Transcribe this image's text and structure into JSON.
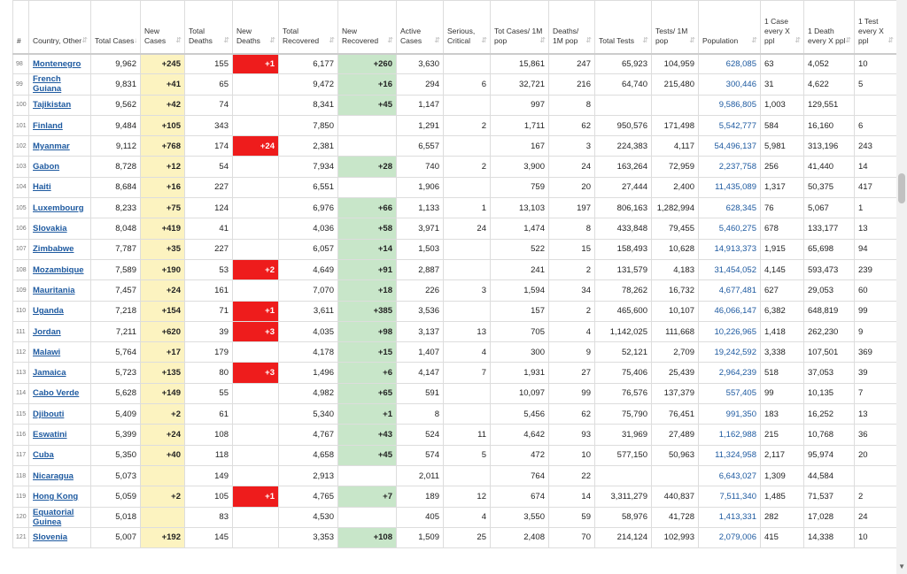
{
  "columns": [
    {
      "key": "rank",
      "label": "#"
    },
    {
      "key": "country",
      "label": "Country, Other"
    },
    {
      "key": "total_cases",
      "label": "Total Cases"
    },
    {
      "key": "new_cases",
      "label": "New Cases"
    },
    {
      "key": "total_deaths",
      "label": "Total Deaths"
    },
    {
      "key": "new_deaths",
      "label": "New Deaths"
    },
    {
      "key": "total_recovered",
      "label": "Total Recovered"
    },
    {
      "key": "new_recovered",
      "label": "New Recovered"
    },
    {
      "key": "active",
      "label": "Active Cases"
    },
    {
      "key": "critical",
      "label": "Serious, Critical"
    },
    {
      "key": "cases_1m",
      "label": "Tot Cases/ 1M pop"
    },
    {
      "key": "deaths_1m",
      "label": "Deaths/ 1M pop"
    },
    {
      "key": "total_tests",
      "label": "Total Tests"
    },
    {
      "key": "tests_1m",
      "label": "Tests/ 1M pop"
    },
    {
      "key": "population",
      "label": "Population"
    },
    {
      "key": "case_every",
      "label": "1 Case every X ppl"
    },
    {
      "key": "death_every",
      "label": "1 Death every X ppl"
    },
    {
      "key": "test_every",
      "label": "1 Test every X ppl"
    }
  ],
  "sort_icons": {
    "default": "⇵",
    "active": "↓"
  },
  "rows": [
    [
      "98",
      "Montenegro",
      "9,962",
      "+245",
      "155",
      "+1",
      "6,177",
      "+260",
      "3,630",
      "",
      "15,861",
      "247",
      "65,923",
      "104,959",
      "628,085",
      "63",
      "4,052",
      "10"
    ],
    [
      "99",
      "French Guiana",
      "9,831",
      "+41",
      "65",
      "",
      "9,472",
      "+16",
      "294",
      "6",
      "32,721",
      "216",
      "64,740",
      "215,480",
      "300,446",
      "31",
      "4,622",
      "5"
    ],
    [
      "100",
      "Tajikistan",
      "9,562",
      "+42",
      "74",
      "",
      "8,341",
      "+45",
      "1,147",
      "",
      "997",
      "8",
      "",
      "",
      "9,586,805",
      "1,003",
      "129,551",
      ""
    ],
    [
      "101",
      "Finland",
      "9,484",
      "+105",
      "343",
      "",
      "7,850",
      "",
      "1,291",
      "2",
      "1,711",
      "62",
      "950,576",
      "171,498",
      "5,542,777",
      "584",
      "16,160",
      "6"
    ],
    [
      "102",
      "Myanmar",
      "9,112",
      "+768",
      "174",
      "+24",
      "2,381",
      "",
      "6,557",
      "",
      "167",
      "3",
      "224,383",
      "4,117",
      "54,496,137",
      "5,981",
      "313,196",
      "243"
    ],
    [
      "103",
      "Gabon",
      "8,728",
      "+12",
      "54",
      "",
      "7,934",
      "+28",
      "740",
      "2",
      "3,900",
      "24",
      "163,264",
      "72,959",
      "2,237,758",
      "256",
      "41,440",
      "14"
    ],
    [
      "104",
      "Haiti",
      "8,684",
      "+16",
      "227",
      "",
      "6,551",
      "",
      "1,906",
      "",
      "759",
      "20",
      "27,444",
      "2,400",
      "11,435,089",
      "1,317",
      "50,375",
      "417"
    ],
    [
      "105",
      "Luxembourg",
      "8,233",
      "+75",
      "124",
      "",
      "6,976",
      "+66",
      "1,133",
      "1",
      "13,103",
      "197",
      "806,163",
      "1,282,994",
      "628,345",
      "76",
      "5,067",
      "1"
    ],
    [
      "106",
      "Slovakia",
      "8,048",
      "+419",
      "41",
      "",
      "4,036",
      "+58",
      "3,971",
      "24",
      "1,474",
      "8",
      "433,848",
      "79,455",
      "5,460,275",
      "678",
      "133,177",
      "13"
    ],
    [
      "107",
      "Zimbabwe",
      "7,787",
      "+35",
      "227",
      "",
      "6,057",
      "+14",
      "1,503",
      "",
      "522",
      "15",
      "158,493",
      "10,628",
      "14,913,373",
      "1,915",
      "65,698",
      "94"
    ],
    [
      "108",
      "Mozambique",
      "7,589",
      "+190",
      "53",
      "+2",
      "4,649",
      "+91",
      "2,887",
      "",
      "241",
      "2",
      "131,579",
      "4,183",
      "31,454,052",
      "4,145",
      "593,473",
      "239"
    ],
    [
      "109",
      "Mauritania",
      "7,457",
      "+24",
      "161",
      "",
      "7,070",
      "+18",
      "226",
      "3",
      "1,594",
      "34",
      "78,262",
      "16,732",
      "4,677,481",
      "627",
      "29,053",
      "60"
    ],
    [
      "110",
      "Uganda",
      "7,218",
      "+154",
      "71",
      "+1",
      "3,611",
      "+385",
      "3,536",
      "",
      "157",
      "2",
      "465,600",
      "10,107",
      "46,066,147",
      "6,382",
      "648,819",
      "99"
    ],
    [
      "111",
      "Jordan",
      "7,211",
      "+620",
      "39",
      "+3",
      "4,035",
      "+98",
      "3,137",
      "13",
      "705",
      "4",
      "1,142,025",
      "111,668",
      "10,226,965",
      "1,418",
      "262,230",
      "9"
    ],
    [
      "112",
      "Malawi",
      "5,764",
      "+17",
      "179",
      "",
      "4,178",
      "+15",
      "1,407",
      "4",
      "300",
      "9",
      "52,121",
      "2,709",
      "19,242,592",
      "3,338",
      "107,501",
      "369"
    ],
    [
      "113",
      "Jamaica",
      "5,723",
      "+135",
      "80",
      "+3",
      "1,496",
      "+6",
      "4,147",
      "7",
      "1,931",
      "27",
      "75,406",
      "25,439",
      "2,964,239",
      "518",
      "37,053",
      "39"
    ],
    [
      "114",
      "Cabo Verde",
      "5,628",
      "+149",
      "55",
      "",
      "4,982",
      "+65",
      "591",
      "",
      "10,097",
      "99",
      "76,576",
      "137,379",
      "557,405",
      "99",
      "10,135",
      "7"
    ],
    [
      "115",
      "Djibouti",
      "5,409",
      "+2",
      "61",
      "",
      "5,340",
      "+1",
      "8",
      "",
      "5,456",
      "62",
      "75,790",
      "76,451",
      "991,350",
      "183",
      "16,252",
      "13"
    ],
    [
      "116",
      "Eswatini",
      "5,399",
      "+24",
      "108",
      "",
      "4,767",
      "+43",
      "524",
      "11",
      "4,642",
      "93",
      "31,969",
      "27,489",
      "1,162,988",
      "215",
      "10,768",
      "36"
    ],
    [
      "117",
      "Cuba",
      "5,350",
      "+40",
      "118",
      "",
      "4,658",
      "+45",
      "574",
      "5",
      "472",
      "10",
      "577,150",
      "50,963",
      "11,324,958",
      "2,117",
      "95,974",
      "20"
    ],
    [
      "118",
      "Nicaragua",
      "5,073",
      "",
      "149",
      "",
      "2,913",
      "",
      "2,011",
      "",
      "764",
      "22",
      "",
      "",
      "6,643,027",
      "1,309",
      "44,584",
      ""
    ],
    [
      "119",
      "Hong Kong",
      "5,059",
      "+2",
      "105",
      "+1",
      "4,765",
      "+7",
      "189",
      "12",
      "674",
      "14",
      "3,311,279",
      "440,837",
      "7,511,340",
      "1,485",
      "71,537",
      "2"
    ],
    [
      "120",
      "Equatorial Guinea",
      "5,018",
      "",
      "83",
      "",
      "4,530",
      "",
      "405",
      "4",
      "3,550",
      "59",
      "58,976",
      "41,728",
      "1,413,331",
      "282",
      "17,028",
      "24"
    ],
    [
      "121",
      "Slovenia",
      "5,007",
      "+192",
      "145",
      "",
      "3,353",
      "+108",
      "1,509",
      "25",
      "2,408",
      "70",
      "214,124",
      "102,993",
      "2,079,006",
      "415",
      "14,338",
      "10"
    ]
  ]
}
